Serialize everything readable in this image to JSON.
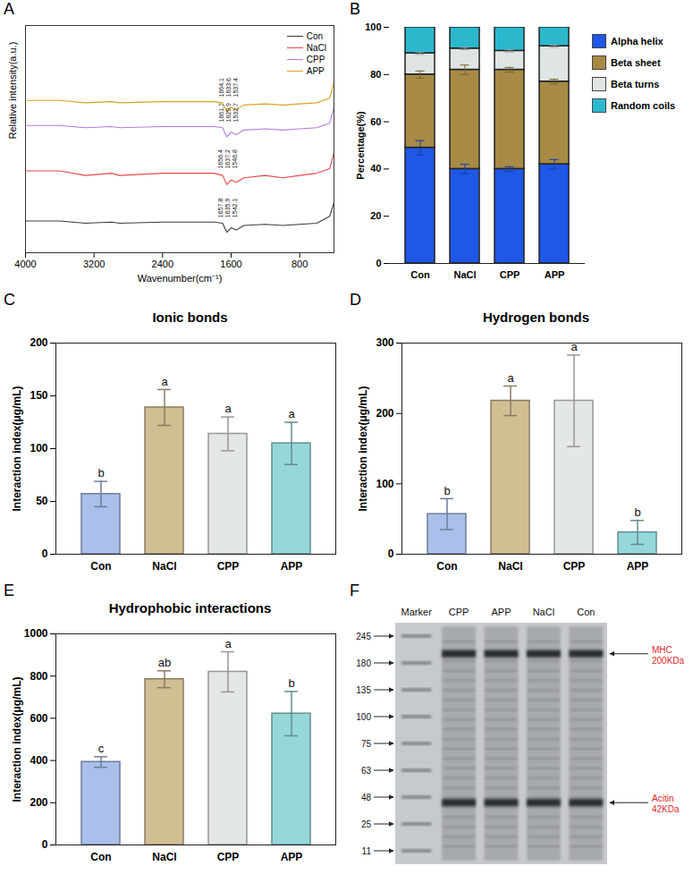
{
  "chart_data": [
    {
      "panel": "A",
      "type": "line",
      "xlabel": "Wavenumber(cm⁻¹)",
      "ylabel": "Relative intensity(a.u.)",
      "x": [
        4000,
        3600,
        3300,
        3000,
        2900,
        2400,
        2000,
        1800,
        1700,
        1650,
        1600,
        1540,
        1450,
        1200,
        1000,
        800,
        600,
        450,
        400
      ],
      "series": [
        {
          "name": "Con",
          "color": "#3a3a3a",
          "values": [
            14,
            14,
            13,
            13.5,
            13,
            13.5,
            13.5,
            13.5,
            13,
            9,
            11,
            10,
            12,
            12.5,
            12,
            12.5,
            13,
            16,
            22
          ],
          "peaks": [
            1657.8,
            1635.9,
            1542.1
          ]
        },
        {
          "name": "NaCl",
          "color": "#e8474c",
          "values": [
            36,
            36,
            34,
            35,
            34,
            35,
            35,
            35,
            34,
            30,
            32,
            31,
            33,
            34,
            33,
            34,
            35,
            37,
            44
          ],
          "peaks": [
            1656.4,
            1637.2,
            1546.8
          ]
        },
        {
          "name": "CPP",
          "color": "#b57be0",
          "values": [
            56,
            56,
            55,
            55.5,
            55,
            55.5,
            55.5,
            55.5,
            55,
            51,
            53,
            52,
            54,
            54.5,
            54,
            54.5,
            55,
            57,
            64
          ],
          "peaks": [
            1661.7,
            1629.9,
            1532.7
          ]
        },
        {
          "name": "APP",
          "color": "#d8a21d",
          "values": [
            67,
            67,
            66,
            66.5,
            66,
            66.5,
            66.5,
            66.5,
            66,
            62,
            64,
            63,
            65,
            65.5,
            65,
            65.5,
            66,
            68,
            75
          ],
          "peaks": [
            1664.1,
            1633.6,
            1537.4
          ]
        }
      ],
      "xlim": [
        4000,
        400
      ],
      "xticks": [
        4000,
        3200,
        2400,
        1600,
        800
      ],
      "ylim": [
        0,
        100
      ],
      "tick_labels": "x",
      "legend": "top-right"
    },
    {
      "panel": "B",
      "type": "bar",
      "stacked": true,
      "ylabel": "Percentage(%)",
      "categories": [
        "Con",
        "NaCl",
        "CPP",
        "APP"
      ],
      "series": [
        {
          "name": "Alpha helix",
          "color": "#1f57e6",
          "values": [
            49,
            40,
            40,
            42
          ],
          "errors": [
            3,
            2,
            1,
            2
          ]
        },
        {
          "name": "Beta sheet",
          "color": "#a88a45",
          "values": [
            31,
            42,
            42,
            35
          ],
          "errors": [
            1.5,
            2,
            1,
            1
          ]
        },
        {
          "name": "Beta turns",
          "color": "#dfe5e4",
          "values": [
            9,
            9,
            8,
            15
          ],
          "errors": [
            0.5,
            0.5,
            0.5,
            0.5
          ]
        },
        {
          "name": "Random coils",
          "color": "#2bb8cc",
          "values": [
            11,
            9,
            10,
            8
          ]
        }
      ],
      "ylim": [
        0,
        100
      ],
      "yticks": [
        0,
        20,
        40,
        60,
        80,
        100
      ],
      "legend": "right"
    },
    {
      "panel": "C",
      "type": "bar",
      "title": "Ionic bonds",
      "ylabel": "Interaction index(μg/mL)",
      "categories": [
        "Con",
        "NaCl",
        "CPP",
        "APP"
      ],
      "values": [
        57,
        139,
        114,
        105
      ],
      "errors": [
        12,
        17,
        16,
        20
      ],
      "letters": [
        "b",
        "a",
        "a",
        "a"
      ],
      "colors": [
        "#a9c0ea",
        "#d2be93",
        "#e4e8e4",
        "#96d8da"
      ],
      "ylim": [
        0,
        200
      ],
      "yticks": [
        0,
        50,
        100,
        150,
        200
      ]
    },
    {
      "panel": "D",
      "type": "bar",
      "title": "Hydrogen bonds",
      "ylabel": "Interaction index(μg/mL)",
      "categories": [
        "Con",
        "NaCl",
        "CPP",
        "APP"
      ],
      "values": [
        57,
        218,
        218,
        31
      ],
      "errors": [
        22,
        21,
        65,
        17
      ],
      "letters": [
        "b",
        "a",
        "a",
        "b"
      ],
      "colors": [
        "#a9c0ea",
        "#d2be93",
        "#e4e8e4",
        "#96d8da"
      ],
      "ylim": [
        0,
        300
      ],
      "yticks": [
        0,
        100,
        200,
        300
      ]
    },
    {
      "panel": "E",
      "type": "bar",
      "title": "Hydrophobic interactions",
      "ylabel": "Interaction index(μg/mL)",
      "categories": [
        "Con",
        "NaCl",
        "CPP",
        "APP"
      ],
      "values": [
        393,
        785,
        820,
        622
      ],
      "errors": [
        25,
        40,
        95,
        105
      ],
      "letters": [
        "c",
        "ab",
        "a",
        "b"
      ],
      "colors": [
        "#a9c0ea",
        "#d2be93",
        "#e4e8e4",
        "#96d8da"
      ],
      "ylim": [
        0,
        1000
      ],
      "yticks": [
        0,
        200,
        400,
        600,
        800,
        1000
      ]
    },
    {
      "panel": "F",
      "type": "gel",
      "lanes": [
        "Marker",
        "CPP",
        "APP",
        "NaCl",
        "Con"
      ],
      "marker_kda": [
        245,
        180,
        135,
        100,
        75,
        63,
        48,
        25,
        11
      ],
      "annotations": [
        {
          "name": "MHC",
          "value": 200,
          "label": "200KDa"
        },
        {
          "name": "Acitin",
          "value": 42,
          "label": "42KDa"
        }
      ]
    }
  ]
}
